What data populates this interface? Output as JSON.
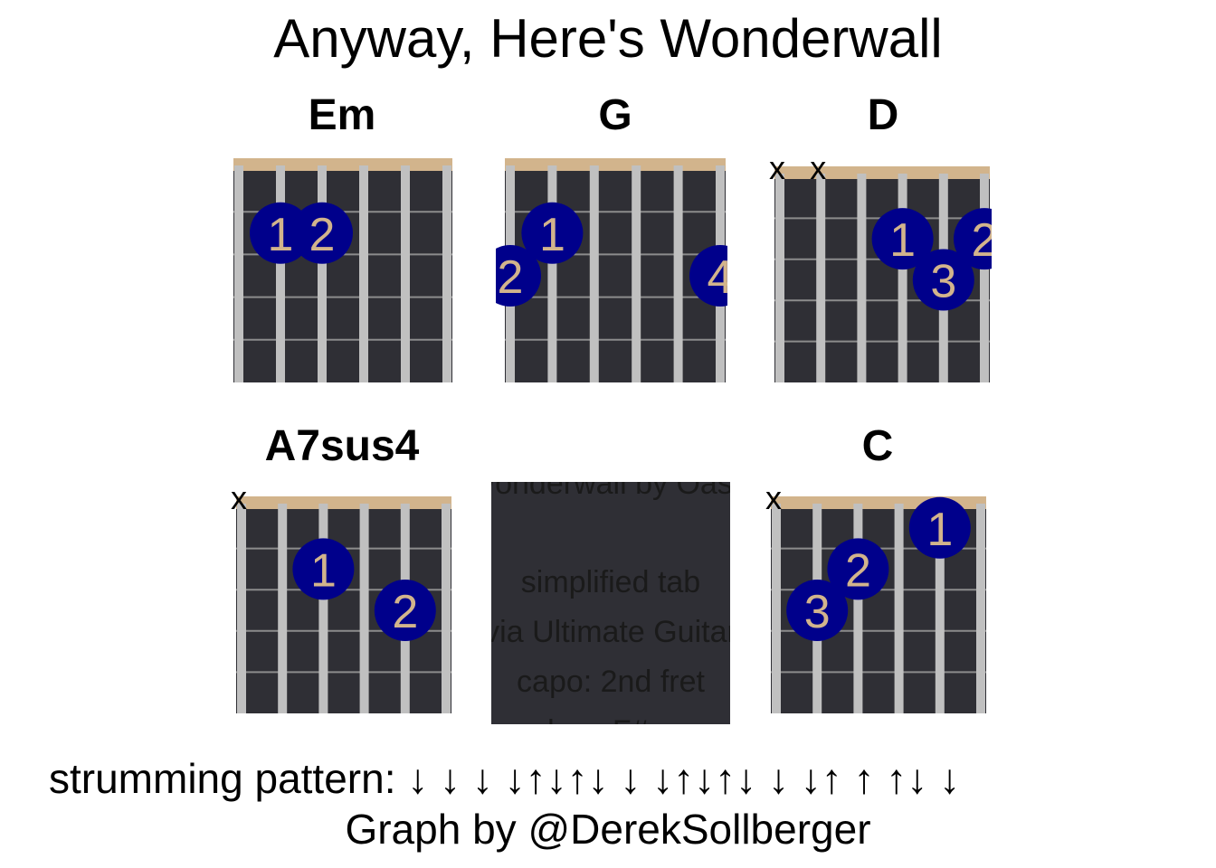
{
  "chart_data": {
    "type": "chord_diagrams",
    "title": "Anyway, Here's Wonderwall",
    "chords": [
      {
        "name": "Em",
        "muted_strings": [],
        "fingers": [
          {
            "string": 2,
            "fret": 2,
            "finger": "1"
          },
          {
            "string": 3,
            "fret": 2,
            "finger": "2"
          }
        ]
      },
      {
        "name": "G",
        "muted_strings": [],
        "fingers": [
          {
            "string": 1,
            "fret": 3,
            "finger": "2"
          },
          {
            "string": 2,
            "fret": 2,
            "finger": "1"
          },
          {
            "string": 6,
            "fret": 3,
            "finger": "4"
          }
        ]
      },
      {
        "name": "D",
        "muted_strings": [
          1,
          2
        ],
        "fingers": [
          {
            "string": 4,
            "fret": 2,
            "finger": "1"
          },
          {
            "string": 5,
            "fret": 3,
            "finger": "3"
          },
          {
            "string": 6,
            "fret": 2,
            "finger": "2"
          }
        ]
      },
      {
        "name": "A7sus4",
        "muted_strings": [
          1
        ],
        "fingers": [
          {
            "string": 3,
            "fret": 2,
            "finger": "1"
          },
          {
            "string": 5,
            "fret": 3,
            "finger": "2"
          }
        ]
      },
      {
        "name": "",
        "muted_strings": [],
        "fingers": []
      },
      {
        "name": "C",
        "muted_strings": [
          1
        ],
        "fingers": [
          {
            "string": 2,
            "fret": 3,
            "finger": "3"
          },
          {
            "string": 3,
            "fret": 2,
            "finger": "2"
          },
          {
            "string": 5,
            "fret": 1,
            "finger": "1"
          }
        ]
      }
    ],
    "info_lines": [
      "Wonderwall by Oasis",
      "simplified tab",
      "via Ultimate Guitar",
      "capo: 2nd fret",
      "key: F#m"
    ],
    "strumming_label": "strumming pattern:",
    "strumming_pattern": "↓ ↓ ↓ ↓↑↓↑↓ ↓ ↓↑↓↑↓ ↓ ↓↑ ↑ ↑↓ ↓",
    "credit": "Graph by @DerekSollberger"
  },
  "colors": {
    "fretboard": "#2f2f35",
    "nut": "#d2b48c",
    "string": "#c0c0c0",
    "fret_line": "#8c8c8c",
    "finger_dot": "#00008b",
    "finger_text": "#d2b48c"
  }
}
